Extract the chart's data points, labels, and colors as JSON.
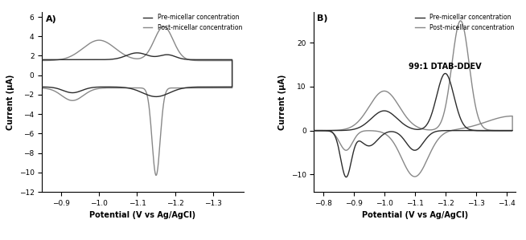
{
  "panel_A": {
    "label": "A)",
    "xlabel": "Potential (V vs Ag/AgCl)",
    "ylabel": "Current (µA)",
    "xlim": [
      -0.85,
      -1.38
    ],
    "ylim": [
      -12.0,
      6.5
    ],
    "yticks": [
      -12.0,
      -10.0,
      -8.0,
      -6.0,
      -4.0,
      -2.0,
      0.0,
      2.0,
      4.0,
      6.0
    ],
    "xticks": [
      -0.9,
      -1.0,
      -1.1,
      -1.2,
      -1.3
    ],
    "legend_labels": [
      "Pre-micellar concentration",
      "Post-micellar concentration"
    ],
    "pre_color": "#2d2d2d",
    "post_color": "#888888"
  },
  "panel_B": {
    "label": "B)",
    "xlabel": "Potential (V vs Ag/AgCl)",
    "ylabel": "Current (µA)",
    "xlim": [
      -0.77,
      -1.43
    ],
    "ylim": [
      -14.0,
      27.0
    ],
    "yticks": [
      -10.0,
      0.0,
      10.0,
      20.0
    ],
    "xticks": [
      -0.8,
      -0.9,
      -1.0,
      -1.1,
      -1.2,
      -1.3,
      -1.4
    ],
    "annotation": "99:1 DTAB-DDEV",
    "legend_labels": [
      "Pre-micellar concentration",
      "Post-micellar concentration"
    ],
    "pre_color": "#2d2d2d",
    "post_color": "#888888"
  },
  "background_color": "#ffffff",
  "figure_size": [
    6.54,
    2.99
  ],
  "dpi": 100
}
